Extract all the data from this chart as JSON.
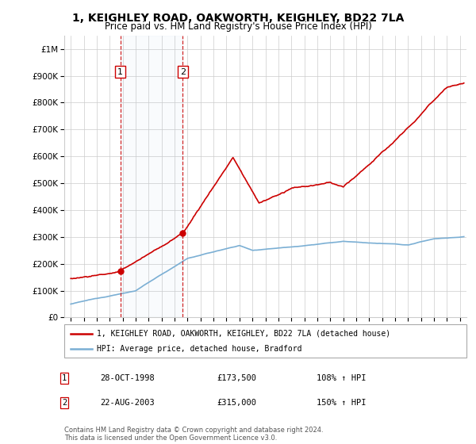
{
  "title": "1, KEIGHLEY ROAD, OAKWORTH, KEIGHLEY, BD22 7LA",
  "subtitle": "Price paid vs. HM Land Registry's House Price Index (HPI)",
  "legend_line1": "1, KEIGHLEY ROAD, OAKWORTH, KEIGHLEY, BD22 7LA (detached house)",
  "legend_line2": "HPI: Average price, detached house, Bradford",
  "sale1_label": "1",
  "sale1_date": "28-OCT-1998",
  "sale1_price": "£173,500",
  "sale1_hpi": "108% ↑ HPI",
  "sale1_year": 1998.82,
  "sale1_value": 173500,
  "sale2_label": "2",
  "sale2_date": "22-AUG-2003",
  "sale2_price": "£315,000",
  "sale2_hpi": "150% ↑ HPI",
  "sale2_year": 2003.63,
  "sale2_value": 315000,
  "copyright": "Contains HM Land Registry data © Crown copyright and database right 2024.\nThis data is licensed under the Open Government Licence v3.0.",
  "hpi_color": "#7bafd4",
  "price_color": "#cc0000",
  "marker_color": "#cc0000",
  "dashed_color": "#cc0000",
  "background_color": "#ffffff",
  "grid_color": "#cccccc",
  "ylim_min": 0,
  "ylim_max": 1050000,
  "xlim_min": 1994.5,
  "xlim_max": 2025.5,
  "hpi_base_1995": 50000,
  "hpi_base_2025": 300000,
  "price_base_1995": 145000,
  "price_sale1": 173500,
  "price_sale2": 315000,
  "price_peak_2007": 600000,
  "price_2010": 430000,
  "price_2015": 480000,
  "price_2021": 700000,
  "price_2024": 860000
}
